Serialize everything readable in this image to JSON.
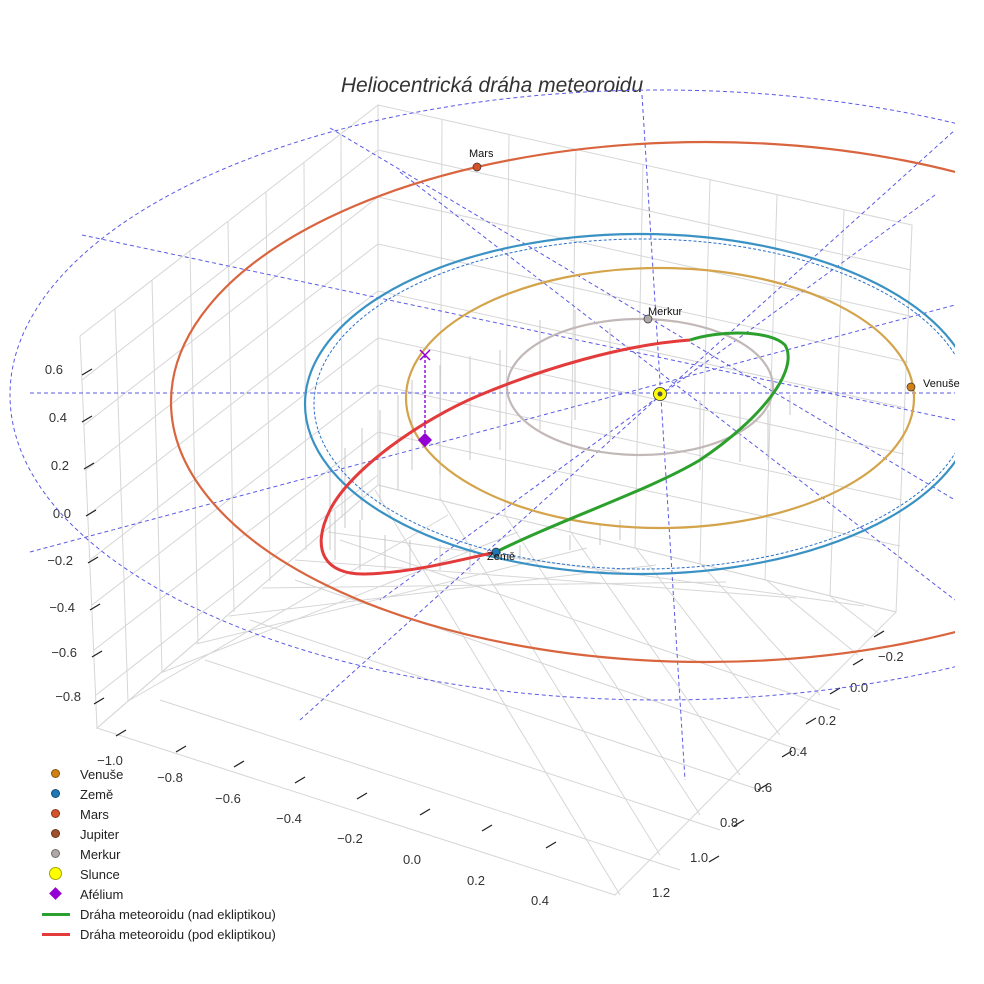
{
  "chart_data": {
    "type": "scatter3d",
    "title": "Heliocentrická dráha meteoroidu",
    "x_ticks": [
      "−1.0",
      "−0.8",
      "−0.6",
      "−0.4",
      "−0.2",
      "0.0",
      "0.2",
      "0.4"
    ],
    "y_ticks": [
      "−0.2",
      "0.0",
      "0.2",
      "0.4",
      "0.6",
      "0.8",
      "1.0",
      "1.2"
    ],
    "z_ticks": [
      "0.6",
      "0.4",
      "0.2",
      "0.0",
      "−0.2",
      "−0.4",
      "−0.6",
      "−0.8"
    ],
    "planets": [
      {
        "name": "Venuše",
        "color": "#d08015",
        "orbit_color": "#d4a44c",
        "semi_major_au": 0.72
      },
      {
        "name": "Země",
        "color": "#1f77b4",
        "orbit_color": "#3a92c4",
        "semi_major_au": 1.0
      },
      {
        "name": "Mars",
        "color": "#d4542a",
        "orbit_color": "#d9653f",
        "semi_major_au": 1.52
      },
      {
        "name": "Merkur",
        "color": "#b0a8a8",
        "orbit_color": "#c2b8b8",
        "semi_major_au": 0.39
      }
    ],
    "sun": {
      "name": "Slunce",
      "color": "#ffff00"
    },
    "aphelion": {
      "name": "Afélium",
      "color": "#9400d3"
    },
    "meteoroid_orbit": {
      "above_ecliptic": {
        "name": "Dráha meteoroidu (nad ekliptikou)",
        "color": "#2ca02c"
      },
      "below_ecliptic": {
        "name": "Dráha meteoroidu (pod ekliptikou)",
        "color": "#e33b3b"
      }
    },
    "reference_lines_color": "#5a5ae6"
  },
  "labels": {
    "mars": "Mars",
    "merkur": "Merkur",
    "venuse": "Venuše",
    "zeme": "Země"
  },
  "legend": {
    "items": [
      {
        "label": "Venuše",
        "color": "#d08015",
        "kind": "dot"
      },
      {
        "label": "Země",
        "color": "#1f77b4",
        "kind": "dot"
      },
      {
        "label": "Mars",
        "color": "#d4542a",
        "kind": "dot"
      },
      {
        "label": "Jupiter",
        "color": "#a0522d",
        "kind": "dot"
      },
      {
        "label": "Merkur",
        "color": "#b0a8a8",
        "kind": "dot"
      },
      {
        "label": "Slunce",
        "color": "#ffff00",
        "kind": "bigdot"
      },
      {
        "label": "Afélium",
        "color": "#9400d3",
        "kind": "diamond"
      },
      {
        "label": "Dráha meteoroidu (nad ekliptikou)",
        "color": "#2ca02c",
        "kind": "line"
      },
      {
        "label": "Dráha meteoroidu (pod ekliptikou)",
        "color": "#e33b3b",
        "kind": "line"
      }
    ]
  }
}
